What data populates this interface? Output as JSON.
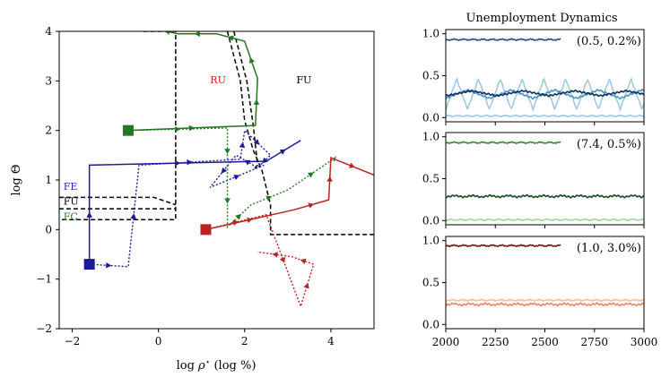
{
  "chart_data": [
    {
      "type": "line",
      "title": "",
      "xlabel": "log ρ* (log %)",
      "ylabel": "log Θ",
      "xlim": [
        -2.3,
        5.0
      ],
      "ylim": [
        -2,
        4
      ],
      "x_ticks": [
        -2,
        0,
        2,
        4
      ],
      "y_ticks": [
        -2,
        -1,
        0,
        1,
        2,
        3,
        4
      ],
      "region_labels": [
        {
          "text": "RU",
          "x": 1.2,
          "y": 2.95,
          "color": "#cc2222"
        },
        {
          "text": "FU",
          "x": 3.2,
          "y": 2.95,
          "color": "#000000"
        },
        {
          "text": "FE",
          "x": -2.2,
          "y": 0.8,
          "color": "#2222cc"
        },
        {
          "text": "FU",
          "x": -2.2,
          "y": 0.5,
          "color": "#000000"
        },
        {
          "text": "FC",
          "x": -2.2,
          "y": 0.2,
          "color": "#228822"
        }
      ],
      "boundaries": [
        {
          "style": "dashed",
          "color": "#000000",
          "points": [
            [
              -0.35,
              4.0
            ],
            [
              0.4,
              4.0
            ],
            [
              0.4,
              0.2
            ],
            [
              -2.3,
              0.2
            ]
          ]
        },
        {
          "style": "dashed",
          "color": "#000000",
          "points": [
            [
              -2.3,
              0.65
            ],
            [
              -0.1,
              0.65
            ],
            [
              0.4,
              0.5
            ]
          ]
        },
        {
          "style": "dashed",
          "color": "#000000",
          "points": [
            [
              -2.3,
              0.42
            ],
            [
              0.1,
              0.42
            ],
            [
              0.4,
              0.42
            ]
          ]
        },
        {
          "style": "dashed",
          "color": "#000000",
          "points": [
            [
              1.6,
              4.0
            ],
            [
              1.9,
              3.0
            ],
            [
              2.0,
              2.2
            ],
            [
              2.2,
              1.6
            ],
            [
              2.4,
              1.2
            ],
            [
              2.6,
              0.5
            ],
            [
              2.6,
              -0.1
            ],
            [
              5.0,
              -0.1
            ]
          ]
        },
        {
          "style": "dashed",
          "color": "#000000",
          "points": [
            [
              1.75,
              4.0
            ],
            [
              2.05,
              3.0
            ],
            [
              2.2,
              2.1
            ],
            [
              2.3,
              1.3
            ],
            [
              2.2,
              1.2
            ]
          ]
        }
      ],
      "series": [
        {
          "color": "#1a1a99",
          "style": "solid",
          "start": [
            -1.6,
            -0.7
          ],
          "points": [
            [
              -1.6,
              -0.7
            ],
            [
              -1.6,
              1.3
            ],
            [
              2.5,
              1.38
            ],
            [
              3.3,
              1.8
            ]
          ]
        },
        {
          "color": "#1a1a99",
          "style": "dotted",
          "start": null,
          "points": [
            [
              -1.6,
              -0.7
            ],
            [
              -0.7,
              -0.75
            ],
            [
              -0.45,
              1.3
            ],
            [
              1.9,
              1.42
            ],
            [
              2.0,
              2.0
            ],
            [
              2.6,
              1.5
            ],
            [
              2.3,
              1.25
            ],
            [
              1.8,
              1.5
            ],
            [
              1.2,
              0.85
            ],
            [
              2.45,
              1.3
            ]
          ]
        },
        {
          "color": "#227722",
          "style": "solid",
          "start": [
            -0.7,
            2.0
          ],
          "points": [
            [
              -0.7,
              2.0
            ],
            [
              2.25,
              2.1
            ],
            [
              2.3,
              3.05
            ],
            [
              2.0,
              3.8
            ],
            [
              1.35,
              3.95
            ],
            [
              0.45,
              3.95
            ],
            [
              -0.05,
              4.05
            ]
          ]
        },
        {
          "color": "#227722",
          "style": "dotted",
          "start": null,
          "points": [
            [
              -0.7,
              2.0
            ],
            [
              1.6,
              2.05
            ],
            [
              1.6,
              1.1
            ],
            [
              1.6,
              0.05
            ],
            [
              2.15,
              0.5
            ],
            [
              3.0,
              0.8
            ],
            [
              4.1,
              1.45
            ],
            [
              4.05,
              1.35
            ]
          ]
        },
        {
          "color": "#bb2222",
          "style": "solid",
          "start": [
            1.1,
            0.0
          ],
          "points": [
            [
              1.1,
              0.0
            ],
            [
              3.15,
              0.4
            ],
            [
              3.95,
              0.6
            ],
            [
              4.0,
              1.45
            ],
            [
              5.0,
              1.1
            ]
          ]
        },
        {
          "color": "#bb2222",
          "style": "dotted",
          "start": null,
          "points": [
            [
              1.1,
              0.0
            ],
            [
              2.5,
              0.3
            ],
            [
              3.3,
              -1.55
            ],
            [
              3.6,
              -0.7
            ],
            [
              3.1,
              -0.55
            ],
            [
              2.3,
              -0.45
            ]
          ]
        }
      ]
    },
    {
      "type": "line",
      "title": "Unemployment Dynamics",
      "xlim": [
        2000,
        3000
      ],
      "x_ticks": [
        2000,
        2250,
        2500,
        2750,
        3000
      ],
      "panels": [
        {
          "annotation": "(0.5, 0.2%)",
          "ylim": [
            -0.05,
            1.05
          ],
          "y_ticks": [
            0.0,
            0.5,
            1.0
          ],
          "series": [
            {
              "color": "#1f4e8c",
              "kind": "flat",
              "level": 0.93,
              "end_x": 2580
            },
            {
              "color": "#9ecae1",
              "kind": "osc",
              "base": 0.28,
              "amp": 0.18,
              "period": 110
            },
            {
              "color": "#4a90c4",
              "kind": "osc",
              "base": 0.28,
              "amp": 0.05,
              "period": 220
            },
            {
              "color": "#0b2e5a",
              "kind": "osc",
              "base": 0.29,
              "amp": 0.03,
              "period": 260
            },
            {
              "color": "#9ecae1",
              "kind": "flat",
              "level": 0.02,
              "end_x": 3000
            }
          ]
        },
        {
          "annotation": "(7.4, 0.5%)",
          "ylim": [
            -0.05,
            1.05
          ],
          "y_ticks": [
            0.0,
            0.5,
            1.0
          ],
          "series": [
            {
              "color": "#2e8b3e",
              "kind": "flat",
              "level": 0.93,
              "end_x": 2580
            },
            {
              "color": "#0d4d1c",
              "kind": "osc",
              "base": 0.29,
              "amp": 0.01,
              "period": 90
            },
            {
              "color": "#a1d99b",
              "kind": "flat",
              "level": 0.01,
              "end_x": 3000
            }
          ]
        },
        {
          "annotation": "(1.0, 3.0%)",
          "ylim": [
            -0.05,
            1.05
          ],
          "y_ticks": [
            0.0,
            0.5,
            1.0
          ],
          "series": [
            {
              "color": "#7a0c0c",
              "kind": "flat",
              "level": 0.94,
              "end_x": 2580
            },
            {
              "color": "#fcbba1",
              "kind": "flat",
              "level": 0.29,
              "end_x": 3000
            },
            {
              "color": "#f08060",
              "kind": "osc",
              "base": 0.24,
              "amp": 0.01,
              "period": 80
            }
          ]
        }
      ]
    }
  ]
}
